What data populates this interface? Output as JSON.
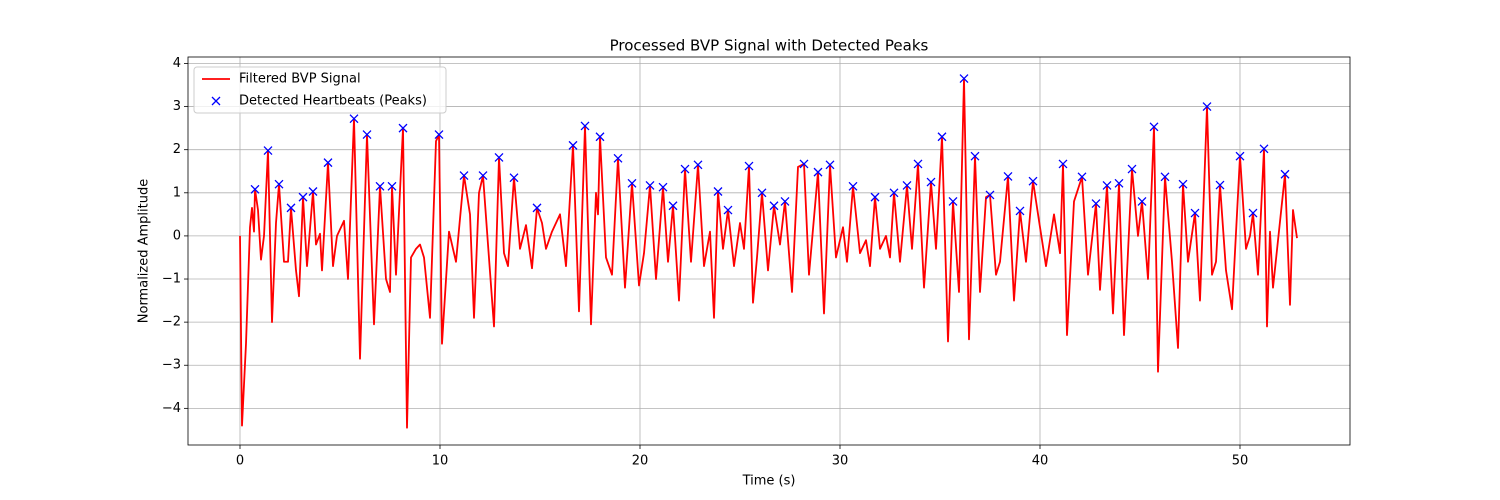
{
  "chart_data": {
    "type": "line",
    "title": "Processed BVP Signal with Detected Peaks",
    "x_label": "Time (s)",
    "y_label": "Normalized Amplitude",
    "xlim": [
      -2.6,
      55.5
    ],
    "ylim": [
      -4.85,
      4.15
    ],
    "xticks": [
      0,
      10,
      20,
      30,
      40,
      50
    ],
    "yticks": [
      {
        "value": -4,
        "label": "−4"
      },
      {
        "value": -3,
        "label": "−3"
      },
      {
        "value": -2,
        "label": "−2"
      },
      {
        "value": -1,
        "label": "−1"
      },
      0,
      1,
      2,
      3,
      4
    ],
    "grid": true,
    "legend": "upper left",
    "series": [
      {
        "name": "Filtered BVP Signal",
        "type": "line",
        "color": "#ff0000",
        "x": [
          0,
          0.1,
          0.3,
          0.5,
          0.6,
          0.7,
          0.75,
          0.9,
          1.05,
          1.2,
          1.4,
          1.6,
          1.8,
          1.95,
          2.2,
          2.4,
          2.55,
          2.8,
          2.95,
          3.15,
          3.35,
          3.65,
          3.8,
          4.0,
          4.1,
          4.4,
          4.65,
          4.85,
          5.2,
          5.4,
          5.7,
          6.0,
          6.35,
          6.7,
          7.0,
          7.3,
          7.5,
          7.6,
          7.8,
          8.15,
          8.35,
          8.55,
          8.8,
          9.0,
          9.2,
          9.5,
          9.8,
          9.95,
          10.1,
          10.45,
          10.8,
          11.2,
          11.5,
          11.7,
          11.95,
          12.15,
          12.4,
          12.7,
          12.95,
          13.2,
          13.4,
          13.7,
          14.0,
          14.3,
          14.6,
          14.85,
          15.1,
          15.3,
          15.6,
          16.0,
          16.3,
          16.65,
          16.95,
          17.25,
          17.55,
          17.8,
          17.9,
          18.0,
          18.3,
          18.6,
          18.9,
          19.25,
          19.6,
          19.95,
          20.2,
          20.5,
          20.8,
          21.15,
          21.4,
          21.65,
          21.95,
          22.25,
          22.55,
          22.9,
          23.2,
          23.5,
          23.7,
          23.9,
          24.15,
          24.4,
          24.7,
          25.0,
          25.2,
          25.45,
          25.65,
          25.85,
          26.1,
          26.4,
          26.7,
          27.0,
          27.25,
          27.6,
          27.9,
          28.2,
          28.45,
          28.9,
          29.2,
          29.5,
          29.8,
          30.15,
          30.35,
          30.65,
          31.0,
          31.3,
          31.5,
          31.75,
          32.0,
          32.3,
          32.5,
          32.7,
          33.0,
          33.35,
          33.6,
          33.9,
          34.2,
          34.55,
          34.8,
          35.1,
          35.4,
          35.65,
          35.95,
          36.2,
          36.45,
          36.75,
          37.0,
          37.3,
          37.5,
          37.8,
          38.0,
          38.4,
          38.7,
          39.0,
          39.3,
          39.65,
          40.0,
          40.3,
          40.7,
          41.0,
          41.15,
          41.35,
          41.7,
          42.1,
          42.4,
          42.8,
          43.0,
          43.35,
          43.65,
          43.95,
          44.2,
          44.6,
          44.9,
          45.1,
          45.4,
          45.7,
          45.9,
          46.25,
          46.6,
          46.9,
          47.15,
          47.4,
          47.75,
          48.0,
          48.35,
          48.6,
          48.8,
          49.0,
          49.3,
          49.6,
          50.0,
          50.3,
          50.5,
          50.65,
          50.9,
          51.2,
          51.35,
          51.5,
          51.65,
          52.25,
          52.5,
          52.65,
          52.85
        ],
        "values": [
          0,
          -4.4,
          -2.5,
          0.2,
          0.65,
          0.1,
          1.08,
          0.6,
          -0.55,
          0,
          1.98,
          -2.0,
          0.3,
          1.2,
          -0.6,
          -0.6,
          0.65,
          -0.8,
          -1.4,
          0.9,
          -0.7,
          1.03,
          -0.2,
          0.05,
          -0.8,
          1.7,
          -0.7,
          0,
          0.35,
          -1.0,
          2.72,
          -2.85,
          2.35,
          -2.05,
          1.15,
          -1.0,
          -1.3,
          1.15,
          -0.9,
          2.5,
          -4.45,
          -0.5,
          -0.3,
          -0.2,
          -0.5,
          -1.9,
          2.2,
          2.35,
          -2.5,
          0.1,
          -0.6,
          1.4,
          0.5,
          -1.9,
          1.0,
          1.4,
          -0.2,
          -2.1,
          1.82,
          -0.4,
          -0.7,
          1.35,
          -0.3,
          0.25,
          -0.75,
          0.65,
          0.3,
          -0.3,
          0.1,
          0.5,
          -0.7,
          2.1,
          -1.75,
          2.55,
          -2.05,
          1.0,
          0.5,
          2.3,
          -0.5,
          -0.9,
          1.8,
          -1.2,
          1.22,
          -1.15,
          -0.4,
          1.17,
          -1.0,
          1.13,
          -0.6,
          0.7,
          -1.5,
          1.55,
          -0.6,
          1.65,
          -0.7,
          0.1,
          -1.9,
          1.03,
          -0.3,
          0.6,
          -0.7,
          0.3,
          -0.3,
          1.62,
          -1.55,
          -0.5,
          1.0,
          -0.8,
          0.7,
          -0.2,
          0.8,
          -1.3,
          1.6,
          1.67,
          -0.9,
          1.48,
          -1.8,
          1.65,
          -0.5,
          0.2,
          -0.6,
          1.15,
          -0.4,
          -0.1,
          -0.7,
          0.9,
          -0.3,
          0,
          -0.5,
          1.0,
          -0.6,
          1.17,
          -0.3,
          1.67,
          -1.2,
          1.25,
          -0.3,
          2.3,
          -2.45,
          0.8,
          -1.3,
          3.65,
          -2.4,
          1.85,
          -1.3,
          0.9,
          0.95,
          -0.9,
          -0.6,
          1.38,
          -1.5,
          0.58,
          -0.6,
          1.27,
          0.2,
          -0.7,
          0.5,
          -0.4,
          1.67,
          -2.3,
          0.8,
          1.37,
          -0.9,
          0.75,
          -1.25,
          1.17,
          -1.8,
          1.22,
          -2.3,
          1.55,
          0,
          0.8,
          -1.0,
          2.53,
          -3.15,
          1.37,
          -0.6,
          -2.6,
          1.2,
          -0.6,
          0.53,
          -1.5,
          3.0,
          -0.9,
          -0.6,
          1.18,
          -0.8,
          -1.7,
          1.85,
          -0.3,
          0,
          0.53,
          -0.9,
          2.02,
          -2.1,
          0.1,
          -1.2,
          1.43,
          -1.6,
          0.6,
          -0.05
        ]
      },
      {
        "name": "Detected Heartbeats (Peaks)",
        "type": "scatter",
        "marker": "x",
        "color": "#0000ff",
        "x": [
          0.75,
          1.4,
          1.95,
          2.55,
          3.15,
          3.65,
          4.4,
          5.7,
          6.35,
          7.0,
          7.6,
          8.15,
          9.95,
          11.2,
          12.15,
          12.95,
          13.7,
          14.85,
          16.65,
          17.25,
          18.0,
          18.9,
          19.6,
          20.5,
          21.15,
          21.65,
          22.25,
          22.9,
          23.9,
          24.4,
          25.45,
          26.1,
          26.7,
          27.25,
          28.2,
          28.9,
          29.5,
          30.65,
          31.75,
          32.7,
          33.35,
          33.9,
          34.55,
          35.1,
          35.65,
          36.2,
          36.75,
          37.5,
          38.4,
          39.0,
          39.65,
          41.15,
          42.1,
          42.8,
          43.35,
          43.95,
          44.6,
          45.1,
          45.7,
          46.25,
          47.15,
          47.75,
          48.35,
          49.0,
          50.0,
          50.65,
          51.2,
          52.25
        ],
        "values": [
          1.08,
          1.98,
          1.2,
          0.65,
          0.9,
          1.03,
          1.7,
          2.72,
          2.35,
          1.15,
          1.15,
          2.5,
          2.35,
          1.4,
          1.4,
          1.82,
          1.35,
          0.65,
          2.1,
          2.55,
          2.3,
          1.8,
          1.22,
          1.17,
          1.13,
          0.7,
          1.55,
          1.65,
          1.03,
          0.6,
          1.62,
          1.0,
          0.7,
          0.8,
          1.67,
          1.48,
          1.65,
          1.15,
          0.9,
          1.0,
          1.17,
          1.67,
          1.25,
          2.3,
          0.8,
          3.65,
          1.85,
          0.95,
          1.38,
          0.58,
          1.27,
          1.67,
          1.37,
          0.75,
          1.17,
          1.22,
          1.55,
          0.8,
          2.53,
          1.37,
          1.2,
          0.53,
          3.0,
          1.18,
          1.85,
          0.53,
          2.02,
          1.43
        ]
      }
    ]
  }
}
